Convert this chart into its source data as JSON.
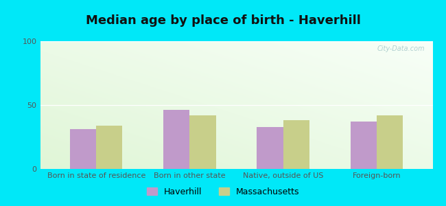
{
  "title": "Median age by place of birth - Haverhill",
  "categories": [
    "Born in state of residence",
    "Born in other state",
    "Native, outside of US",
    "Foreign-born"
  ],
  "haverhill_values": [
    31,
    46,
    33,
    37
  ],
  "massachusetts_values": [
    34,
    42,
    38,
    42
  ],
  "haverhill_color": "#c09aca",
  "massachusetts_color": "#c8cf8a",
  "ylim": [
    0,
    100
  ],
  "yticks": [
    0,
    50,
    100
  ],
  "outer_bg": "#00e8f8",
  "bar_width": 0.28,
  "legend_haverhill": "Haverhill",
  "legend_massachusetts": "Massachusetts",
  "title_fontsize": 13,
  "tick_fontsize": 8,
  "legend_fontsize": 9,
  "grad_color_top_left": "#c8e8c0",
  "grad_color_bottom_right": "#f4fbf4",
  "watermark": "City-Data.com"
}
